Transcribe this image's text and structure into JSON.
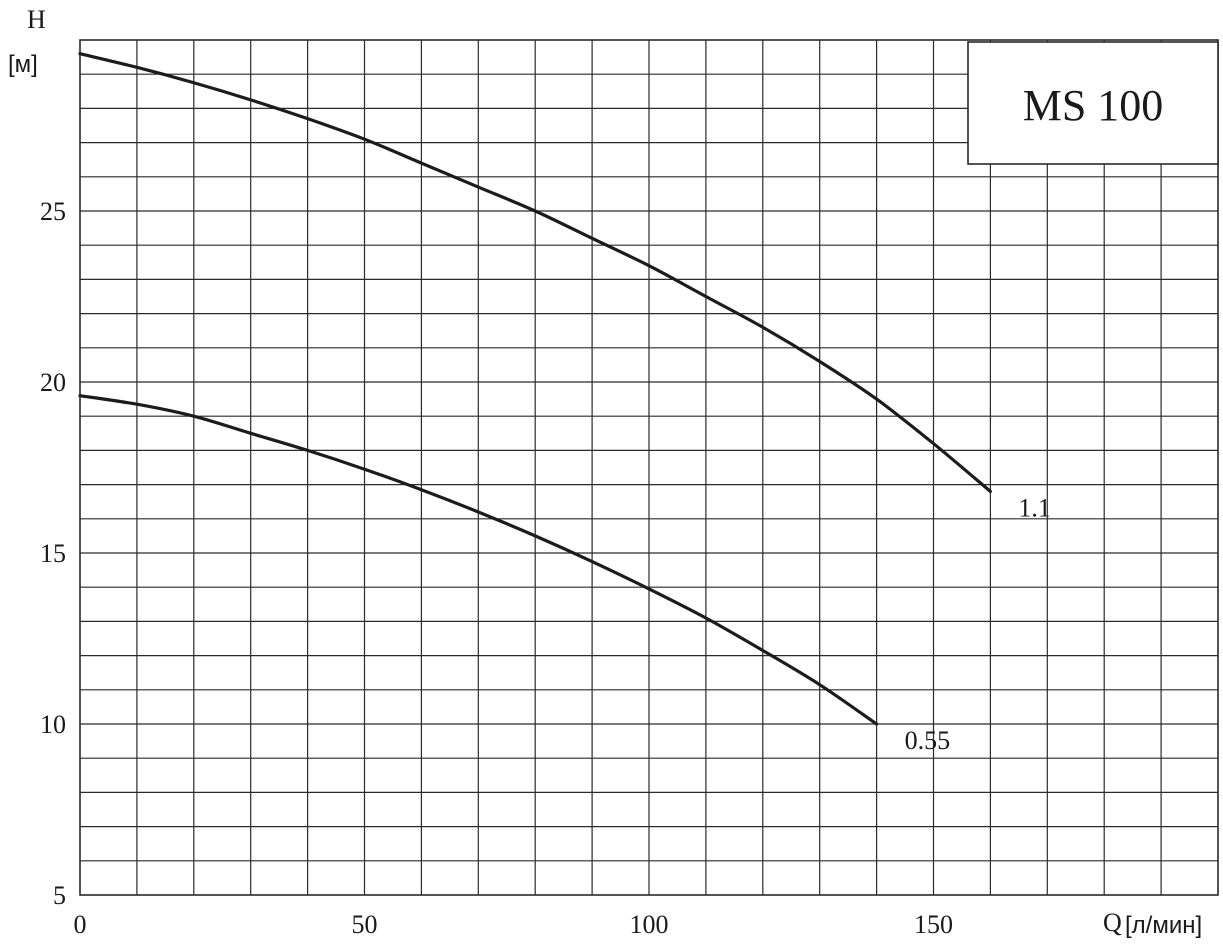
{
  "chart_data": {
    "type": "line",
    "title": "MS 100",
    "ylabel": "H",
    "yunit": "[м]",
    "xlabel": "Q",
    "xunit": "[л/мин]",
    "xlim": [
      0,
      200
    ],
    "ylim": [
      5,
      30
    ],
    "xticks": [
      0,
      50,
      100,
      150
    ],
    "yticks": [
      5,
      10,
      15,
      20,
      25
    ],
    "grid": true,
    "series": [
      {
        "name": "1.1",
        "x": [
          0,
          10,
          20,
          30,
          40,
          50,
          60,
          70,
          80,
          90,
          100,
          110,
          120,
          130,
          140,
          150,
          160
        ],
        "y": [
          29.6,
          29.2,
          28.75,
          28.25,
          27.7,
          27.1,
          26.4,
          25.7,
          25.0,
          24.2,
          23.4,
          22.5,
          21.6,
          20.6,
          19.5,
          18.2,
          16.8
        ]
      },
      {
        "name": "0.55",
        "x": [
          0,
          10,
          20,
          30,
          40,
          50,
          60,
          70,
          80,
          90,
          100,
          110,
          120,
          130,
          140
        ],
        "y": [
          19.6,
          19.35,
          19.0,
          18.5,
          18.0,
          17.45,
          16.85,
          16.2,
          15.5,
          14.75,
          13.95,
          13.1,
          12.15,
          11.15,
          10.0
        ]
      }
    ]
  },
  "colors": {
    "curve": "#1c1c1c",
    "grid": "#2a2a2a",
    "background": "#ffffff"
  }
}
